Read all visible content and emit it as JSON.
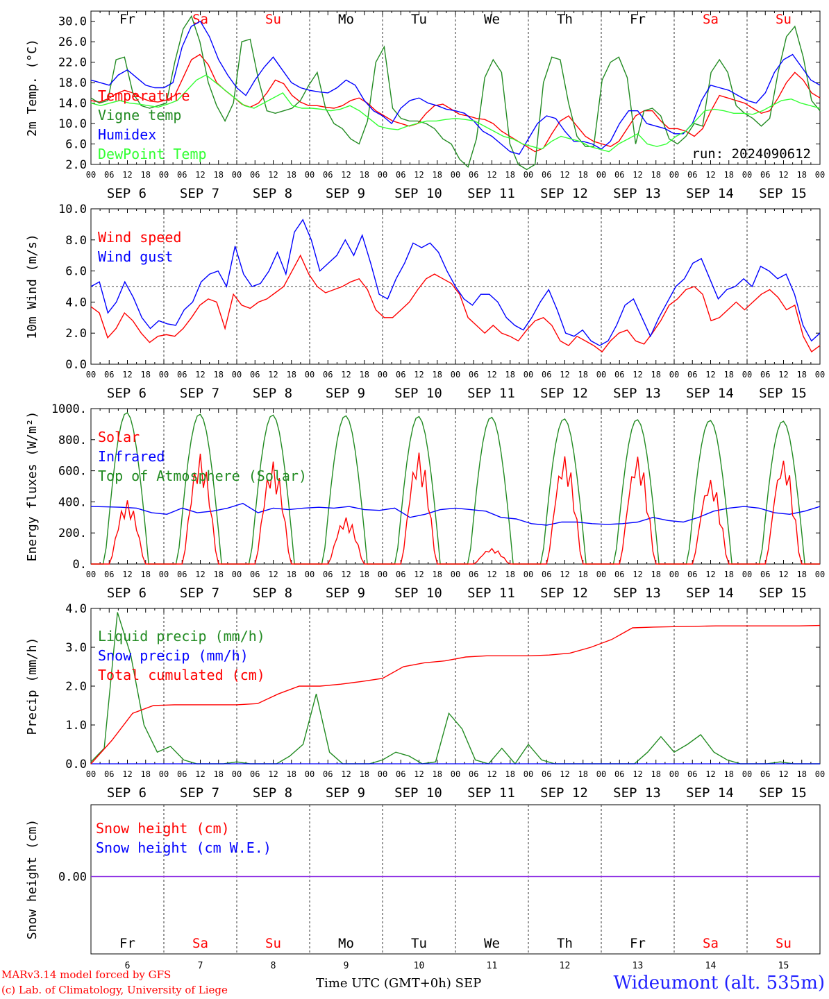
{
  "chart_data": [
    {
      "type": "line",
      "ylabel": "2m Temp. (°C)",
      "ylim": [
        2,
        32
      ],
      "yticks": [
        "2.0",
        "6.0",
        "10.0",
        "14.0",
        "18.0",
        "22.0",
        "26.0",
        "30.0"
      ],
      "run_label": "run: 2024090612",
      "series": [
        {
          "name": "Temperature",
          "color": "#ff0000",
          "values": [
            14.5,
            14.2,
            14.8,
            15.8,
            16.5,
            16.0,
            15.0,
            14.4,
            14.2,
            14.6,
            15.5,
            19.0,
            22.5,
            23.5,
            21.5,
            18.0,
            16.5,
            15.2,
            13.8,
            13.2,
            14.0,
            16.0,
            18.5,
            17.8,
            15.5,
            14.2,
            13.5,
            13.5,
            13.2,
            13.0,
            13.5,
            14.5,
            15.0,
            14.0,
            12.5,
            11.5,
            10.5,
            10.0,
            9.5,
            10.0,
            12.0,
            13.5,
            13.8,
            12.8,
            11.8,
            11.5,
            11.0,
            10.8,
            10.0,
            8.5,
            7.5,
            6.5,
            5.5,
            4.5,
            5.2,
            8.0,
            10.5,
            11.5,
            9.5,
            7.5,
            6.5,
            6.0,
            5.5,
            6.5,
            9.0,
            11.5,
            12.5,
            12.5,
            10.5,
            9.0,
            9.0,
            8.5,
            7.5,
            9.0,
            12.5,
            15.5,
            15.0,
            14.5,
            14.0,
            13.0,
            12.0,
            12.5,
            15.0,
            18.0,
            20.0,
            18.5,
            16.0,
            15.0
          ]
        },
        {
          "name": "Vigne temp",
          "color": "#228b22",
          "values": [
            15.0,
            14.0,
            14.5,
            22.5,
            23.0,
            16.0,
            13.5,
            13.0,
            13.5,
            14.0,
            22.0,
            28.5,
            31.0,
            26.0,
            18.0,
            13.5,
            10.5,
            14.0,
            26.0,
            26.5,
            18.5,
            12.5,
            12.0,
            12.5,
            13.0,
            14.5,
            17.5,
            20.0,
            13.0,
            10.0,
            9.0,
            7.0,
            6.0,
            10.5,
            22.0,
            25.0,
            13.0,
            11.0,
            10.5,
            10.5,
            10.0,
            9.0,
            7.0,
            6.0,
            3.0,
            1.5,
            7.0,
            19.0,
            22.5,
            20.0,
            6.0,
            2.0,
            1.0,
            2.0,
            18.0,
            23.0,
            22.5,
            14.0,
            7.5,
            5.5,
            5.5,
            18.5,
            22.0,
            23.0,
            19.0,
            6.0,
            12.5,
            13.0,
            11.5,
            7.0,
            6.0,
            7.5,
            10.0,
            9.5,
            20.0,
            22.5,
            20.0,
            13.5,
            12.0,
            11.0,
            9.5,
            11.0,
            20.0,
            27.0,
            29.0,
            23.0,
            14.5,
            12.5
          ]
        },
        {
          "name": "Humidex",
          "color": "#0000ff",
          "values": [
            18.5,
            18.0,
            17.5,
            19.5,
            20.5,
            19.0,
            17.5,
            17.0,
            17.0,
            18.0,
            25.0,
            29.0,
            30.0,
            27.0,
            22.5,
            19.5,
            17.0,
            15.5,
            18.5,
            21.0,
            23.0,
            20.5,
            18.0,
            17.0,
            16.5,
            16.2,
            16.0,
            17.0,
            18.5,
            17.5,
            14.5,
            12.5,
            11.5,
            10.0,
            13.0,
            14.5,
            15.0,
            14.0,
            13.5,
            12.8,
            12.5,
            12.0,
            10.5,
            8.5,
            7.5,
            6.0,
            4.5,
            4.0,
            7.0,
            10.0,
            11.5,
            11.0,
            8.5,
            6.5,
            6.5,
            6.0,
            5.0,
            6.5,
            10.0,
            12.5,
            12.5,
            10.0,
            9.5,
            9.0,
            8.0,
            8.0,
            10.0,
            14.5,
            17.5,
            17.0,
            16.5,
            15.5,
            14.5,
            14.0,
            16.0,
            20.0,
            22.5,
            23.5,
            21.0,
            18.5,
            17.5
          ]
        },
        {
          "name": "DewPoint Temp",
          "color": "#33ff33",
          "values": [
            14.0,
            13.5,
            14.0,
            14.5,
            14.0,
            13.8,
            13.5,
            13.2,
            13.8,
            14.5,
            16.5,
            18.5,
            19.5,
            18.0,
            16.5,
            15.0,
            13.5,
            13.0,
            14.0,
            15.0,
            16.0,
            13.5,
            13.0,
            13.0,
            12.8,
            12.5,
            12.8,
            13.5,
            12.5,
            11.0,
            9.5,
            9.0,
            8.8,
            9.5,
            10.0,
            10.5,
            10.5,
            10.8,
            11.0,
            10.8,
            10.5,
            9.5,
            8.5,
            7.5,
            7.0,
            6.0,
            5.5,
            5.0,
            6.5,
            7.5,
            7.0,
            6.5,
            5.5,
            5.0,
            4.5,
            6.0,
            7.0,
            8.0,
            6.0,
            5.5,
            6.0,
            7.5,
            8.5,
            10.5,
            12.5,
            12.8,
            12.5,
            12.0,
            12.0,
            11.8,
            12.5,
            13.5,
            14.5,
            14.8,
            14.0,
            13.5,
            13.0
          ]
        }
      ]
    },
    {
      "type": "line",
      "ylabel": "10m Wind (m/s)",
      "ylim": [
        0,
        10
      ],
      "yticks": [
        "0.0",
        "2.0",
        "4.0",
        "6.0",
        "8.0",
        "10.0"
      ],
      "reference_line": 5,
      "series": [
        {
          "name": "Wind speed",
          "color": "#ff0000",
          "values": [
            3.7,
            3.3,
            1.7,
            2.3,
            3.3,
            2.8,
            2.0,
            1.4,
            1.8,
            1.9,
            1.8,
            2.3,
            3.0,
            3.8,
            4.2,
            4.0,
            2.3,
            4.5,
            3.8,
            3.6,
            4.0,
            4.2,
            4.6,
            5.0,
            6.0,
            7.0,
            5.8,
            5.0,
            4.6,
            4.8,
            5.0,
            5.3,
            5.5,
            4.8,
            3.5,
            3.0,
            3.0,
            3.5,
            4.0,
            4.8,
            5.5,
            5.8,
            5.5,
            5.2,
            4.5,
            3.0,
            2.5,
            2.0,
            2.5,
            2.0,
            1.8,
            1.5,
            2.2,
            2.8,
            3.0,
            2.5,
            1.5,
            1.2,
            1.8,
            1.5,
            1.2,
            0.8,
            1.5,
            2.0,
            2.2,
            1.5,
            1.3,
            2.0,
            2.8,
            3.8,
            4.2,
            4.8,
            5.0,
            4.5,
            2.8,
            3.0,
            3.5,
            4.0,
            3.5,
            4.0,
            4.5,
            4.8,
            4.3,
            3.5,
            3.8,
            1.8,
            0.8,
            1.2
          ]
        },
        {
          "name": "Wind gust",
          "color": "#0000ff",
          "values": [
            5.0,
            5.3,
            3.3,
            4.0,
            5.3,
            4.3,
            3.0,
            2.3,
            2.8,
            2.6,
            2.5,
            3.5,
            4.0,
            5.3,
            5.8,
            6.0,
            5.0,
            7.6,
            5.8,
            5.0,
            5.2,
            6.0,
            7.2,
            5.8,
            8.5,
            9.3,
            8.0,
            6.0,
            6.5,
            7.0,
            8.0,
            7.0,
            8.3,
            6.5,
            4.5,
            4.2,
            5.5,
            6.5,
            7.8,
            7.5,
            7.8,
            7.2,
            6.0,
            5.0,
            4.2,
            3.8,
            4.5,
            4.5,
            4.0,
            3.0,
            2.5,
            2.2,
            3.0,
            4.0,
            4.8,
            3.5,
            2.0,
            1.8,
            2.2,
            1.5,
            1.2,
            1.5,
            2.5,
            3.8,
            4.2,
            3.0,
            1.8,
            3.0,
            4.0,
            5.0,
            5.5,
            6.5,
            6.8,
            5.5,
            4.2,
            4.8,
            5.0,
            5.5,
            5.0,
            6.3,
            6.0,
            5.5,
            5.8,
            4.5,
            2.5,
            1.5,
            2.0
          ]
        }
      ]
    },
    {
      "type": "line",
      "ylabel": "Energy fluxes (W/m²)",
      "ylim": [
        0,
        1000
      ],
      "yticks": [
        "0.",
        "200.",
        "400.",
        "600.",
        "800.",
        "1000."
      ],
      "series": [
        {
          "name": "Solar",
          "color": "#ff0000",
          "daily_peaks": [
            410,
            710,
            660,
            300,
            720,
            100,
            700,
            700,
            550,
            680
          ]
        },
        {
          "name": "Infrared",
          "color": "#0000ff",
          "values": [
            370,
            368,
            365,
            360,
            330,
            320,
            360,
            330,
            340,
            360,
            390,
            330,
            360,
            350,
            360,
            365,
            360,
            370,
            350,
            345,
            360,
            300,
            320,
            350,
            360,
            350,
            340,
            300,
            290,
            260,
            250,
            270,
            270,
            260,
            255,
            260,
            270,
            300,
            280,
            270,
            300,
            340,
            360,
            370,
            360,
            330,
            320,
            340,
            370
          ]
        },
        {
          "name": "Top of Atmosphere (Solar)",
          "color": "#228b22",
          "daily_peaks": [
            975,
            965,
            960,
            955,
            950,
            945,
            935,
            930,
            925,
            920
          ]
        }
      ]
    },
    {
      "type": "line",
      "ylabel": "Precip (mm/h)",
      "ylim": [
        0,
        4
      ],
      "yticks": [
        "0.0",
        "1.0",
        "2.0",
        "3.0",
        "4.0"
      ],
      "series": [
        {
          "name": "Liquid precip (mm/h)",
          "color": "#228b22",
          "values": [
            0.05,
            0.4,
            3.9,
            2.8,
            1.0,
            0.3,
            0.45,
            0.1,
            0.0,
            0.0,
            0.0,
            0.05,
            0.0,
            0.0,
            0.0,
            0.2,
            0.5,
            1.8,
            0.3,
            0.0,
            0.0,
            0.0,
            0.1,
            0.3,
            0.2,
            0.0,
            0.05,
            1.3,
            0.9,
            0.1,
            0.0,
            0.4,
            0.0,
            0.5,
            0.1,
            0.0,
            0.0,
            0.0,
            0.0,
            0.0,
            0.0,
            0.0,
            0.3,
            0.7,
            0.3,
            0.5,
            0.75,
            0.3,
            0.1,
            0.0,
            0.0,
            0.0,
            0.05,
            0.0,
            0.0,
            0.0
          ]
        },
        {
          "name": "Snow precip (mm/h)",
          "color": "#0000ff",
          "values": [
            0
          ]
        },
        {
          "name": "Total cumulated (cm)",
          "color": "#ff0000",
          "values": [
            0.0,
            0.6,
            1.3,
            1.5,
            1.52,
            1.52,
            1.52,
            1.52,
            1.55,
            1.8,
            2.0,
            2.0,
            2.05,
            2.12,
            2.2,
            2.5,
            2.6,
            2.65,
            2.75,
            2.78,
            2.78,
            2.78,
            2.8,
            2.85,
            3.0,
            3.2,
            3.5,
            3.52,
            3.53,
            3.54,
            3.55,
            3.55,
            3.55,
            3.55,
            3.55,
            3.56
          ]
        }
      ]
    },
    {
      "type": "line",
      "ylabel": "Snow height (cm)",
      "yticks": [
        "0.00"
      ],
      "series": [
        {
          "name": "Snow height (cm)",
          "color": "#ff0000",
          "values": [
            0
          ]
        },
        {
          "name": "Snow height (cm W.E.)",
          "color": "#0000ff",
          "values": [
            0
          ]
        }
      ]
    }
  ],
  "axis": {
    "hour_ticks": [
      "00",
      "06",
      "12",
      "18"
    ],
    "end_tick": "00",
    "date_labels": [
      "SEP  6",
      "SEP  7",
      "SEP  8",
      "SEP  9",
      "SEP 10",
      "SEP 11",
      "SEP 12",
      "SEP 13",
      "SEP 14",
      "SEP 15"
    ],
    "weekdays": [
      "Fr",
      "Sa",
      "Su",
      "Mo",
      "Tu",
      "We",
      "Th",
      "Fr",
      "Sa",
      "Su"
    ],
    "weekend_flags": [
      false,
      true,
      true,
      false,
      false,
      false,
      false,
      false,
      true,
      true
    ],
    "day_numbers": [
      "6",
      "7",
      "8",
      "9",
      "10",
      "11",
      "12",
      "13",
      "14",
      "15"
    ],
    "bottom_title": "Time UTC (GMT+0h)",
    "bottom_title_unit": "SEP"
  },
  "colors": {
    "weekend": "#ff0000",
    "weekday": "#000000",
    "grid": "#333333"
  },
  "footer": {
    "model": "MARv3.14 model forced by GFS",
    "copyright": "(c) Lab. of Climatology, University of Liege",
    "station": "Wideumont (alt. 535m)"
  }
}
